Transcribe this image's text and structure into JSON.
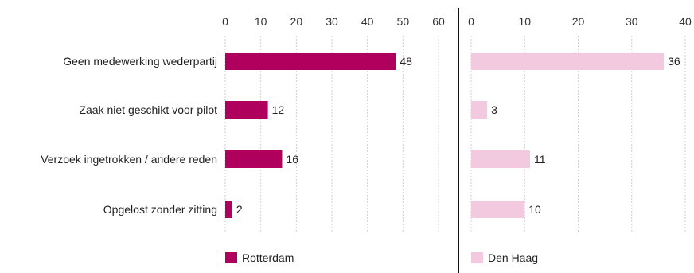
{
  "chart_data": {
    "type": "bar",
    "orientation": "horizontal",
    "categories": [
      "Geen medewerking wederpartij",
      "Zaak niet geschikt voor pilot",
      "Verzoek ingetrokken / andere reden",
      "Opgelost zonder zitting"
    ],
    "panels": [
      {
        "name": "Rotterdam",
        "color": "#b0005e",
        "values": [
          48,
          12,
          16,
          2
        ],
        "xlim": [
          0,
          60
        ],
        "ticks": [
          0,
          10,
          20,
          30,
          40,
          50,
          60
        ]
      },
      {
        "name": "Den Haag",
        "color": "#f2c9df",
        "values": [
          36,
          3,
          11,
          10
        ],
        "xlim": [
          0,
          40
        ],
        "ticks": [
          0,
          10,
          20,
          30,
          40
        ]
      }
    ],
    "axis_position": "top",
    "grid": true,
    "legend_position": "bottom"
  }
}
